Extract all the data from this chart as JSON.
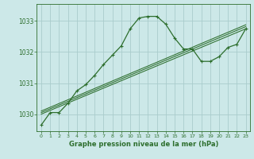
{
  "background_color": "#cce8e8",
  "grid_color": "#aacccc",
  "line_color": "#2d6e2d",
  "title": "Graphe pression niveau de la mer (hPa)",
  "xlim": [
    -0.5,
    23.5
  ],
  "ylim": [
    1029.45,
    1033.55
  ],
  "yticks": [
    1030,
    1031,
    1032,
    1033
  ],
  "xticks": [
    0,
    1,
    2,
    3,
    4,
    5,
    6,
    7,
    8,
    9,
    10,
    11,
    12,
    13,
    14,
    15,
    16,
    17,
    18,
    19,
    20,
    21,
    22,
    23
  ],
  "main_x": [
    0,
    1,
    2,
    3,
    4,
    5,
    6,
    7,
    8,
    9,
    10,
    11,
    12,
    13,
    14,
    15,
    16,
    17,
    18,
    19,
    20,
    21,
    22,
    23
  ],
  "main_y": [
    1029.65,
    1030.05,
    1030.05,
    1030.35,
    1030.75,
    1030.95,
    1031.25,
    1031.6,
    1031.9,
    1032.2,
    1032.75,
    1033.1,
    1033.15,
    1033.15,
    1032.9,
    1032.45,
    1032.1,
    1032.1,
    1031.7,
    1031.7,
    1031.85,
    1032.15,
    1032.25,
    1032.75
  ],
  "straight_lines": [
    {
      "x": [
        0,
        23
      ],
      "y": [
        1030.0,
        1032.75
      ]
    },
    {
      "x": [
        0,
        23
      ],
      "y": [
        1030.05,
        1032.82
      ]
    },
    {
      "x": [
        0,
        23
      ],
      "y": [
        1030.1,
        1032.88
      ]
    }
  ]
}
